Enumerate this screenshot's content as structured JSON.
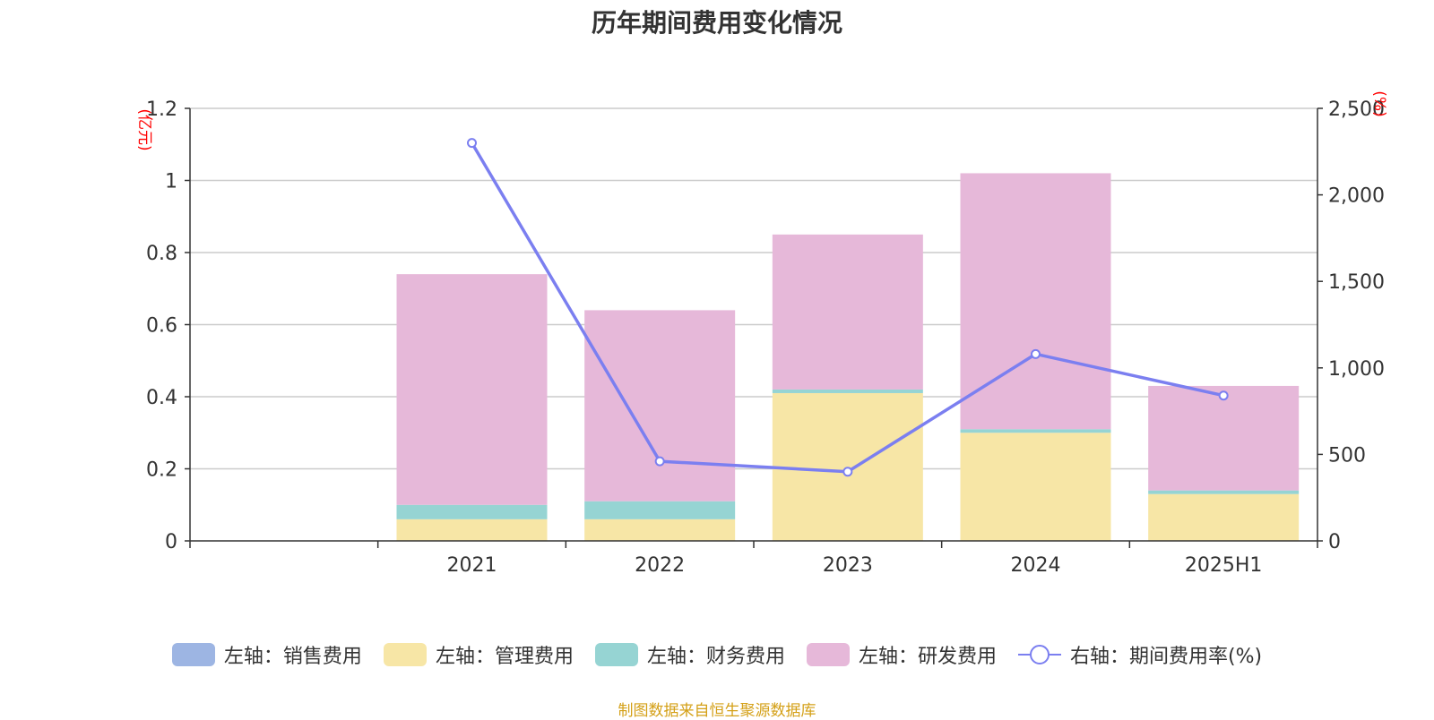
{
  "chart_data": {
    "type": "bar",
    "title": "历年期间费用变化情况",
    "categories": [
      "",
      "2021",
      "2022",
      "2023",
      "2024",
      "2025H1"
    ],
    "series": [
      {
        "name": "左轴：销售费用",
        "axis": "left",
        "kind": "bar",
        "color": "#9db5e3",
        "values": [
          null,
          0,
          0,
          0,
          0,
          0
        ]
      },
      {
        "name": "左轴：管理费用",
        "axis": "left",
        "kind": "bar",
        "color": "#f7e6a6",
        "values": [
          null,
          0.06,
          0.06,
          0.41,
          0.3,
          0.13
        ]
      },
      {
        "name": "左轴：财务费用",
        "axis": "left",
        "kind": "bar",
        "color": "#96d4d3",
        "values": [
          null,
          0.04,
          0.05,
          0.01,
          0.01,
          0.01
        ]
      },
      {
        "name": "左轴：研发费用",
        "axis": "left",
        "kind": "bar",
        "color": "#e6b8d9",
        "values": [
          null,
          0.64,
          0.53,
          0.43,
          0.71,
          0.29
        ]
      },
      {
        "name": "右轴：期间费用率(%)",
        "axis": "right",
        "kind": "line",
        "color": "#7b7ff0",
        "values": [
          null,
          2300,
          460,
          400,
          1080,
          840
        ]
      }
    ],
    "y_left": {
      "unit": "(亿元)",
      "ylim": [
        0,
        1.2
      ],
      "ticks": [
        0,
        0.2,
        0.4,
        0.6,
        0.8,
        1,
        1.2
      ],
      "tick_labels": [
        "0",
        "0.2",
        "0.4",
        "0.6",
        "0.8",
        "1",
        "1.2"
      ]
    },
    "y_right": {
      "unit": "(%)",
      "ylim": [
        0,
        2500
      ],
      "ticks": [
        0,
        500,
        1000,
        1500,
        2000,
        2500
      ],
      "tick_labels": [
        "0",
        "500",
        "1,000",
        "1,500",
        "2,000",
        "2,500"
      ]
    },
    "grid": true,
    "legend_position": "bottom"
  },
  "source_note": "制图数据来自恒生聚源数据库"
}
